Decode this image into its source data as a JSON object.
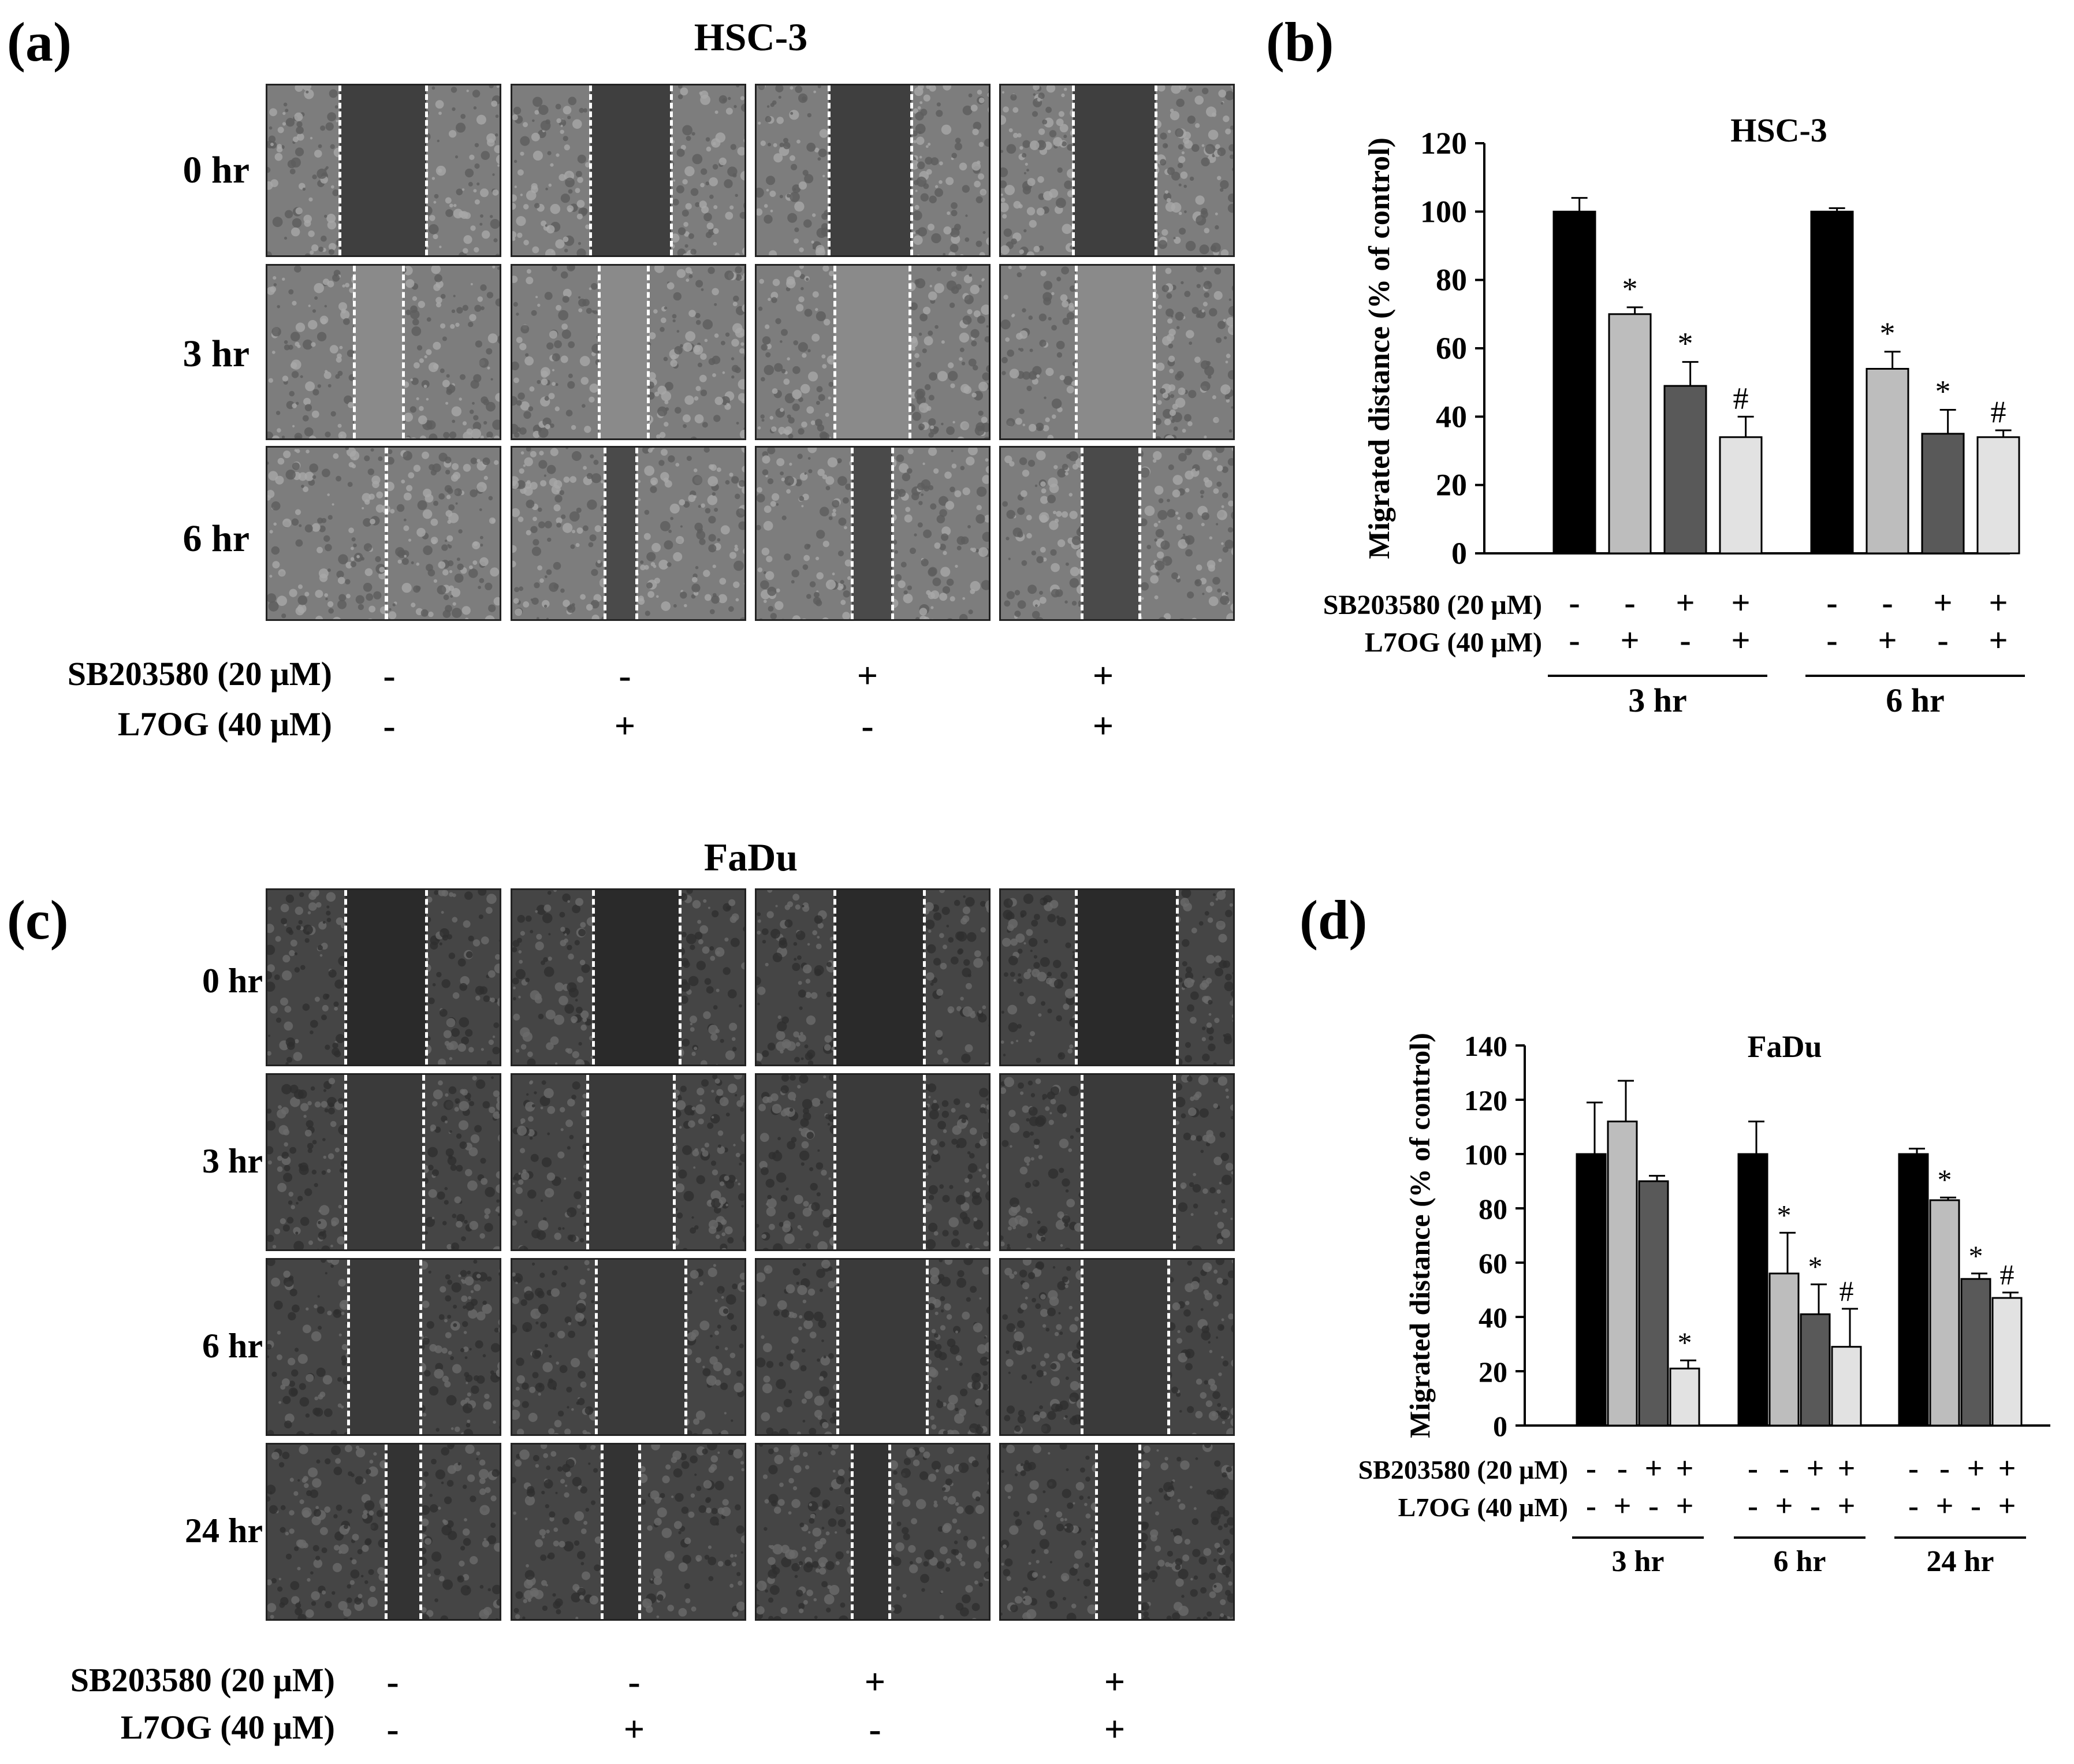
{
  "panels": {
    "a": "(a)",
    "b": "(b)",
    "c": "(c)",
    "d": "(d)"
  },
  "panel_a": {
    "title": "HSC-3",
    "rows": [
      "0 hr",
      "3 hr",
      "6 hr"
    ],
    "treatments": [
      {
        "label": "SB203580 (20 μM)",
        "signs": [
          "-",
          "-",
          "+",
          "+"
        ]
      },
      {
        "label": "L7OG (40 μM)",
        "signs": [
          "-",
          "+",
          "-",
          "+"
        ]
      }
    ]
  },
  "panel_c": {
    "title": "FaDu",
    "rows": [
      "0 hr",
      "3 hr",
      "6 hr",
      "24 hr"
    ],
    "treatments": [
      {
        "label": "SB203580 (20 μM)",
        "signs": [
          "-",
          "-",
          "+",
          "+"
        ]
      },
      {
        "label": "L7OG (40 μM)",
        "signs": [
          "-",
          "+",
          "-",
          "+"
        ]
      }
    ]
  },
  "colors": {
    "control": "#000000",
    "l7og": "#bdbdbd",
    "sb": "#595959",
    "combo": "#e2e2e2"
  },
  "chart_data": [
    {
      "id": "b",
      "type": "bar",
      "title": "HSC-3",
      "ylabel": "Migrated distance  (% of control)",
      "ylim": [
        0,
        120
      ],
      "yticks": [
        0,
        20,
        40,
        60,
        80,
        100,
        120
      ],
      "groups": [
        "3 hr",
        "6 hr"
      ],
      "series": [
        {
          "name": "Control",
          "values": [
            100,
            100
          ],
          "errors": [
            4,
            1
          ],
          "marks": [
            "",
            ""
          ]
        },
        {
          "name": "L7OG",
          "values": [
            70,
            54
          ],
          "errors": [
            2,
            5
          ],
          "marks": [
            "*",
            "*"
          ]
        },
        {
          "name": "SB203580",
          "values": [
            49,
            35
          ],
          "errors": [
            7,
            7
          ],
          "marks": [
            "*",
            "*"
          ]
        },
        {
          "name": "SB203580 + L7OG",
          "values": [
            34,
            34
          ],
          "errors": [
            6,
            2
          ],
          "marks": [
            "#",
            "#"
          ]
        }
      ],
      "treatments": [
        {
          "label": "SB203580 (20 μM)",
          "signs": [
            "-",
            "-",
            "+",
            "+"
          ]
        },
        {
          "label": "L7OG (40 μM)",
          "signs": [
            "-",
            "+",
            "-",
            "+"
          ]
        }
      ]
    },
    {
      "id": "d",
      "type": "bar",
      "title": "FaDu",
      "ylabel": "Migrated distance  (% of control)",
      "ylim": [
        0,
        140
      ],
      "yticks": [
        0,
        20,
        40,
        60,
        80,
        100,
        120,
        140
      ],
      "groups": [
        "3 hr",
        "6 hr",
        "24 hr"
      ],
      "series": [
        {
          "name": "Control",
          "values": [
            100,
            100,
            100
          ],
          "errors": [
            19,
            12,
            2
          ],
          "marks": [
            "",
            "",
            ""
          ]
        },
        {
          "name": "L7OG",
          "values": [
            112,
            56,
            83
          ],
          "errors": [
            15,
            15,
            1
          ],
          "marks": [
            "",
            "*",
            "*"
          ]
        },
        {
          "name": "SB203580",
          "values": [
            90,
            41,
            54
          ],
          "errors": [
            2,
            11,
            2
          ],
          "marks": [
            "",
            "*",
            "*"
          ]
        },
        {
          "name": "SB203580 + L7OG",
          "values": [
            21,
            29,
            47
          ],
          "errors": [
            3,
            14,
            2
          ],
          "marks": [
            "*",
            "#",
            "#"
          ]
        }
      ],
      "treatments": [
        {
          "label": "SB203580 (20 μM)",
          "signs": [
            "-",
            "-",
            "+",
            "+"
          ]
        },
        {
          "label": "L7OG (40 μM)",
          "signs": [
            "-",
            "+",
            "-",
            "+"
          ]
        }
      ]
    }
  ]
}
